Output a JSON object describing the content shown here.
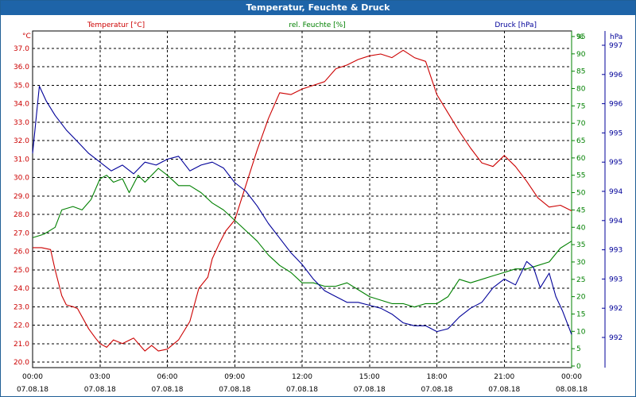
{
  "window": {
    "title": "Temperatur, Feuchte & Druck"
  },
  "chart_data": {
    "type": "line",
    "title": "Temperatur, Feuchte & Druck",
    "x_unit_hours": true,
    "xlim": [
      0,
      24
    ],
    "x_ticks": [
      {
        "h": 0,
        "time": "00:00",
        "date": "07.08.18"
      },
      {
        "h": 3,
        "time": "03:00",
        "date": "07.08.18"
      },
      {
        "h": 6,
        "time": "06:00",
        "date": "07.08.18"
      },
      {
        "h": 9,
        "time": "09:00",
        "date": "07.08.18"
      },
      {
        "h": 12,
        "time": "12:00",
        "date": "07.08.18"
      },
      {
        "h": 15,
        "time": "15:00",
        "date": "07.08.18"
      },
      {
        "h": 18,
        "time": "18:00",
        "date": "07.08.18"
      },
      {
        "h": 21,
        "time": "21:00",
        "date": "07.08.18"
      },
      {
        "h": 24,
        "time": "00:00",
        "date": "08.08.18"
      }
    ],
    "axes": {
      "temperature": {
        "unit": "°C",
        "ylim": [
          20.0,
          37.0
        ],
        "color": "#cc0000",
        "ticks": [
          "20.0",
          "21.0",
          "22.0",
          "23.0",
          "24.0",
          "25.0",
          "26.0",
          "27.0",
          "28.0",
          "29.0",
          "30.0",
          "31.0",
          "32.0",
          "33.0",
          "34.0",
          "35.0",
          "36.0",
          "37.0"
        ]
      },
      "humidity": {
        "unit": "%",
        "ylim": [
          0,
          95
        ],
        "color": "#008000",
        "ticks": [
          "0",
          "5",
          "10",
          "15",
          "20",
          "25",
          "30",
          "35",
          "40",
          "45",
          "50",
          "55",
          "60",
          "65",
          "70",
          "75",
          "80",
          "85",
          "90",
          "95"
        ]
      },
      "pressure": {
        "unit": "hPa",
        "color": "#000099",
        "tick_labels": [
          "997",
          "996",
          "996",
          "995",
          "995",
          "994",
          "994",
          "993",
          "993",
          "992",
          "992"
        ]
      }
    },
    "grid": true,
    "series": [
      {
        "name": "Temperatur [°C]",
        "axis": "temperature",
        "color": "#cc0000",
        "x": [
          0,
          0.4,
          0.8,
          1.0,
          1.3,
          1.5,
          1.8,
          2.0,
          2.5,
          2.8,
          3.0,
          3.3,
          3.6,
          4.0,
          4.5,
          5.0,
          5.3,
          5.6,
          6.0,
          6.5,
          7.0,
          7.4,
          7.8,
          8.0,
          8.3,
          8.6,
          9.0,
          9.5,
          10.0,
          10.5,
          11.0,
          11.5,
          12.0,
          12.5,
          13.0,
          13.5,
          14.0,
          14.5,
          15.0,
          15.5,
          16.0,
          16.5,
          17.0,
          17.5,
          18.0,
          18.5,
          19.0,
          19.5,
          20.0,
          20.5,
          21.0,
          21.5,
          22.0,
          22.5,
          23.0,
          23.5,
          24.0
        ],
        "y": [
          26.2,
          26.2,
          26.1,
          25.0,
          23.6,
          23.1,
          23.0,
          22.9,
          21.8,
          21.3,
          21.0,
          20.8,
          21.2,
          21.0,
          21.3,
          20.6,
          20.9,
          20.6,
          20.7,
          21.2,
          22.2,
          24.0,
          24.6,
          25.6,
          26.4,
          27.1,
          27.7,
          29.6,
          31.5,
          33.2,
          34.6,
          34.5,
          34.8,
          35.0,
          35.2,
          35.9,
          36.1,
          36.4,
          36.6,
          36.7,
          36.5,
          36.9,
          36.5,
          36.3,
          34.5,
          33.5,
          32.5,
          31.6,
          30.8,
          30.6,
          31.2,
          30.6,
          29.8,
          28.9,
          28.4,
          28.5,
          28.2
        ]
      },
      {
        "name": "rel. Feuchte [%]",
        "axis": "humidity",
        "color": "#008000",
        "x": [
          0,
          0.5,
          1.0,
          1.3,
          1.8,
          2.2,
          2.6,
          3.0,
          3.3,
          3.6,
          4.0,
          4.3,
          4.7,
          5.0,
          5.3,
          5.6,
          6.0,
          6.5,
          7.0,
          7.5,
          8.0,
          8.5,
          9.0,
          9.5,
          10.0,
          10.5,
          11.0,
          11.5,
          12.0,
          12.5,
          13.0,
          13.5,
          14.0,
          14.5,
          15.0,
          15.5,
          16.0,
          16.5,
          17.0,
          17.5,
          18.0,
          18.5,
          19.0,
          19.5,
          20.0,
          20.5,
          21.0,
          21.5,
          22.0,
          22.5,
          23.0,
          23.5,
          24.0
        ],
        "y": [
          37,
          38,
          40,
          45,
          46,
          45,
          48,
          54,
          55,
          53,
          54,
          50,
          55,
          53,
          55,
          57,
          55,
          52,
          52,
          50,
          47,
          45,
          42,
          39,
          36,
          32,
          29,
          27,
          24,
          24,
          23,
          23,
          24,
          22,
          20,
          19,
          18,
          18,
          17,
          18,
          18,
          20,
          25,
          24,
          25,
          26,
          27,
          28,
          28,
          29,
          30,
          34,
          36
        ]
      },
      {
        "name": "Druck [hPa]",
        "axis": "pressure",
        "color": "#000099",
        "x": [
          0,
          0.3,
          0.6,
          1.0,
          1.5,
          2.0,
          2.5,
          3.0,
          3.5,
          4.0,
          4.5,
          5.0,
          5.5,
          6.0,
          6.5,
          7.0,
          7.5,
          8.0,
          8.5,
          9.0,
          9.5,
          10.0,
          10.5,
          11.0,
          11.5,
          12.0,
          12.5,
          13.0,
          13.5,
          14.0,
          14.5,
          15.0,
          15.5,
          16.0,
          16.5,
          17.0,
          17.5,
          18.0,
          18.5,
          19.0,
          19.5,
          20.0,
          20.5,
          21.0,
          21.5,
          22.0,
          22.3,
          22.6,
          23.0,
          23.3,
          23.6,
          24.0
        ],
        "y": [
          63,
          86,
          81,
          76,
          71,
          67,
          63,
          60,
          57,
          59,
          56,
          60,
          59,
          61,
          62,
          57,
          59,
          60,
          58,
          53,
          50,
          45,
          39,
          34,
          29,
          25,
          20,
          16,
          14,
          12,
          12,
          11,
          10,
          8,
          5,
          4,
          4,
          2,
          3,
          7,
          10,
          12,
          17,
          20,
          18,
          26,
          24,
          17,
          22,
          14,
          9,
          1
        ]
      }
    ]
  }
}
